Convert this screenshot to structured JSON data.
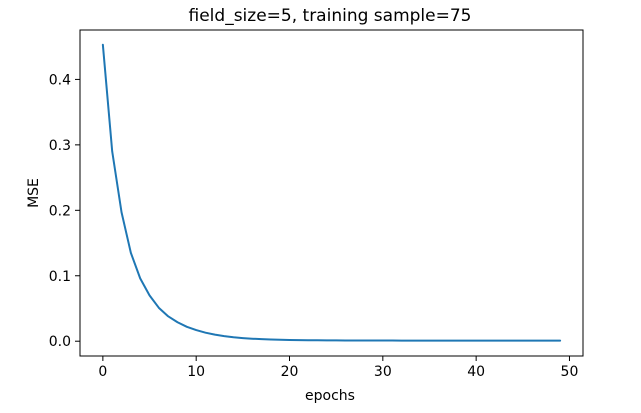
{
  "chart_data": {
    "type": "line",
    "title": "field_size=5, training sample=75",
    "xlabel": "epochs",
    "ylabel": "MSE",
    "xlim": [
      -2.45,
      51.45
    ],
    "ylim": [
      -0.0226,
      0.4755
    ],
    "xticks": [
      0,
      10,
      20,
      30,
      40,
      50
    ],
    "yticks": [
      0.0,
      0.1,
      0.2,
      0.3,
      0.4
    ],
    "xtick_labels": [
      "0",
      "10",
      "20",
      "30",
      "40",
      "50"
    ],
    "ytick_labels": [
      "0.0",
      "0.1",
      "0.2",
      "0.3",
      "0.4"
    ],
    "grid": false,
    "series_color": "#1f77b4",
    "series": [
      {
        "x": [
          0,
          1,
          2,
          3,
          4,
          5,
          6,
          7,
          8,
          9,
          10,
          11,
          12,
          13,
          14,
          15,
          16,
          17,
          18,
          19,
          20,
          21,
          22,
          23,
          24,
          25,
          26,
          27,
          28,
          29,
          30,
          31,
          32,
          33,
          34,
          35,
          36,
          37,
          38,
          39,
          40,
          41,
          42,
          43,
          44,
          45,
          46,
          47,
          48,
          49
        ],
        "values": [
          0.453,
          0.29,
          0.197,
          0.135,
          0.096,
          0.07,
          0.051,
          0.038,
          0.029,
          0.022,
          0.017,
          0.013,
          0.01,
          0.0078,
          0.0061,
          0.0048,
          0.0038,
          0.0031,
          0.0026,
          0.0022,
          0.0019,
          0.0017,
          0.0015,
          0.0014,
          0.0013,
          0.0012,
          0.0011,
          0.0011,
          0.001,
          0.001,
          0.001,
          0.001,
          0.0009,
          0.0009,
          0.0009,
          0.0009,
          0.0009,
          0.0009,
          0.0009,
          0.0009,
          0.0009,
          0.0009,
          0.0009,
          0.0009,
          0.0009,
          0.0009,
          0.0009,
          0.0009,
          0.0009,
          0.0009
        ]
      }
    ]
  }
}
